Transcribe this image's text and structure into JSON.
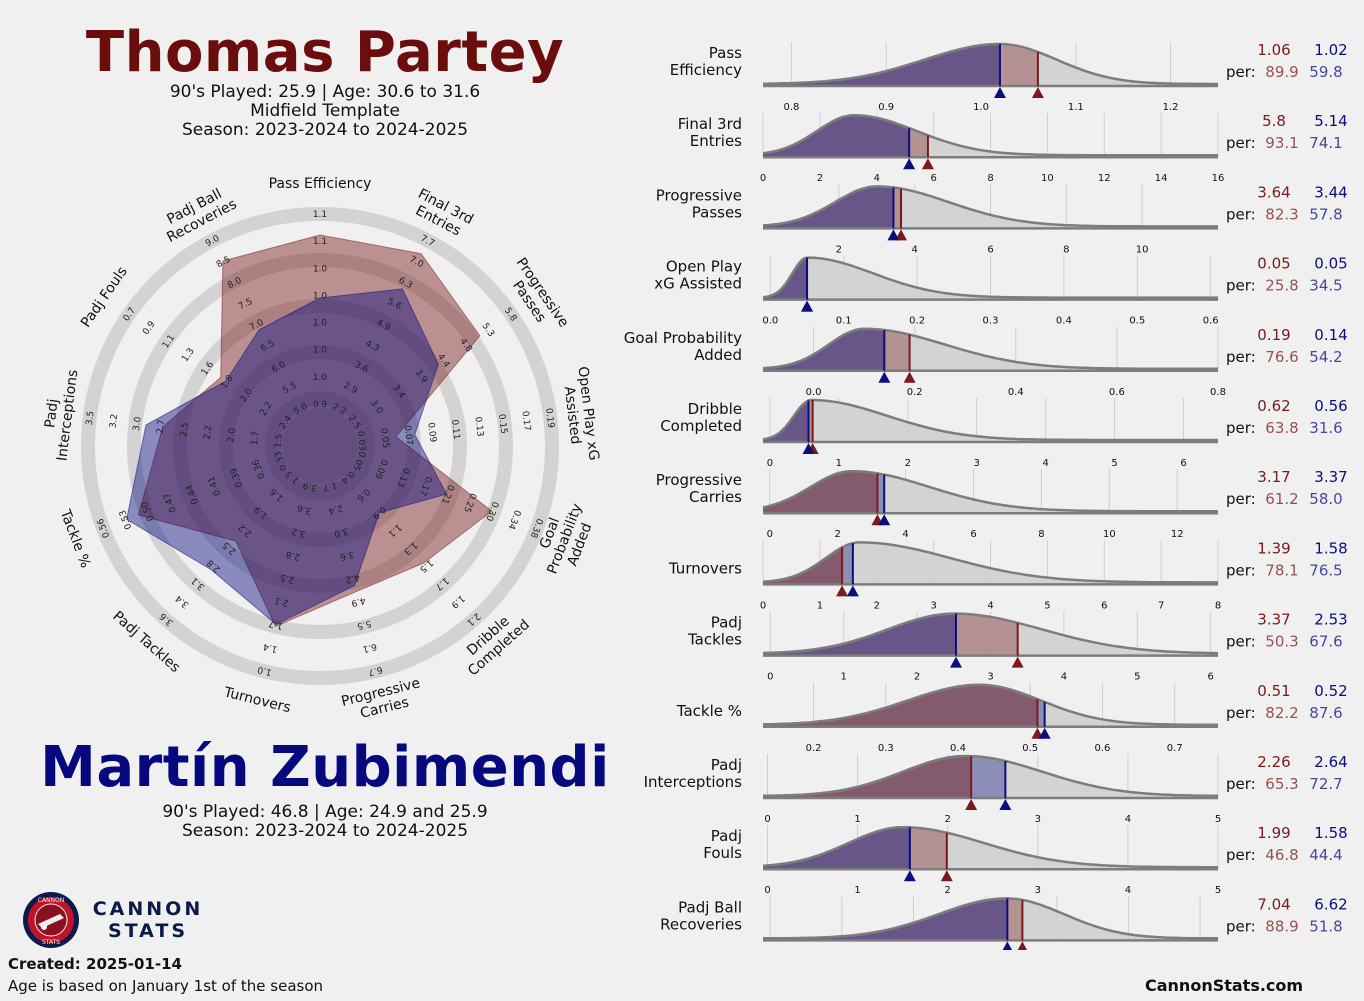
{
  "player1": {
    "name": "Thomas Partey",
    "played": "90's Played: 25.9 | Age: 30.6 to 31.6",
    "template": "Midfield Template",
    "season": "Season: 2023-2024 to 2024-2025",
    "color": "#7a1a1a"
  },
  "player2": {
    "name": "Martín Zubimendi",
    "played": "90's Played: 46.8 | Age: 24.9 and 25.9",
    "season": "Season: 2023-2024 to 2024-2025",
    "color": "#0c0e7e"
  },
  "footer": {
    "created": "Created: 2025-01-14",
    "age_note": "Age is based on January 1st of the season",
    "site": "CannonStats.com",
    "brand_line1": "CANNON",
    "brand_line2": "STATS",
    "logo_top": "CANNON",
    "logo_bottom": "STATS"
  },
  "per_label": "per:",
  "chart_data": [
    {
      "type": "radar",
      "axes": [
        {
          "label": [
            "Pass Efficiency"
          ],
          "ticks": [
            "0.9",
            "1.0",
            "1.0",
            "1.0",
            "1.0",
            "1.0",
            "1.1",
            "1.1"
          ],
          "p1": 0.9,
          "p2": 0.6
        },
        {
          "label": [
            "Final 3rd",
            "Entries"
          ],
          "ticks": [
            "2.2",
            "2.9",
            "3.6",
            "4.3",
            "4.9",
            "5.6",
            "6.3",
            "7.0",
            "7.7"
          ],
          "p1": 0.93,
          "p2": 0.74
        },
        {
          "label": [
            "Progressive",
            "Passes"
          ],
          "ticks": [
            "2.5",
            "3.0",
            "3.4",
            "3.9",
            "4.4",
            "4.8",
            "5.3",
            "5.8"
          ],
          "p1": 0.82,
          "p2": 0.58
        },
        {
          "label": [
            "Open Play xG",
            "Assisted"
          ],
          "ticks": [
            "0.03",
            "0.05",
            "0.07",
            "0.09",
            "0.11",
            "0.13",
            "0.15",
            "0.17",
            "0.19"
          ],
          "p1": 0.26,
          "p2": 0.35
        },
        {
          "label": [
            "Goal",
            "Probability",
            "Added"
          ],
          "ticks": [
            "0.05",
            "0.09",
            "0.13",
            "0.17",
            "0.21",
            "0.25",
            "0.30",
            "0.34",
            "0.38"
          ],
          "p1": 0.77,
          "p2": 0.54
        },
        {
          "label": [
            "Dribble",
            "Completed"
          ],
          "ticks": [
            "0.4",
            "0.6",
            "0.9",
            "1.1",
            "1.3",
            "1.5",
            "1.7",
            "1.9",
            "2.1"
          ],
          "p1": 0.64,
          "p2": 0.32
        },
        {
          "label": [
            "Progressive",
            "Carries"
          ],
          "ticks": [
            "1.7",
            "2.4",
            "3.0",
            "3.6",
            "4.2",
            "4.9",
            "5.5",
            "6.1",
            "6.7"
          ],
          "p1": 0.61,
          "p2": 0.58
        },
        {
          "label": [
            "Turnovers"
          ],
          "ticks": [
            "3.9",
            "3.6",
            "3.2",
            "2.8",
            "2.5",
            "2.1",
            "1.7",
            "1.4",
            "1.0"
          ],
          "p1": 0.78,
          "p2": 0.77
        },
        {
          "label": [
            "Padj Tackles"
          ],
          "ticks": [
            "1.3",
            "1.6",
            "1.9",
            "2.2",
            "2.5",
            "2.8",
            "3.1",
            "3.4",
            "3.6"
          ],
          "p1": 0.5,
          "p2": 0.68
        },
        {
          "label": [
            "Tackle %"
          ],
          "ticks": [
            "0.33",
            "0.36",
            "0.39",
            "0.41",
            "0.44",
            "0.47",
            "0.50",
            "0.53",
            "0.56"
          ],
          "p1": 0.82,
          "p2": 0.88
        },
        {
          "label": [
            "Padj",
            "Interceptions"
          ],
          "ticks": [
            "1.5",
            "1.7",
            "2.0",
            "2.2",
            "2.5",
            "2.7",
            "3.0",
            "3.2",
            "3.5"
          ],
          "p1": 0.65,
          "p2": 0.73
        },
        {
          "label": [
            "Padj Fouls"
          ],
          "ticks": [
            "2.4",
            "2.2",
            "2.0",
            "1.8",
            "1.6",
            "1.3",
            "1.1",
            "0.9",
            "0.7"
          ],
          "p1": 0.47,
          "p2": 0.44
        },
        {
          "label": [
            "Padj Ball",
            "Recoveries"
          ],
          "ticks": [
            "5.0",
            "5.5",
            "6.0",
            "6.5",
            "7.0",
            "7.5",
            "8.0",
            "8.5",
            "9.0"
          ],
          "p1": 0.89,
          "p2": 0.52
        }
      ]
    },
    {
      "type": "area",
      "rows": [
        {
          "label": [
            "Pass",
            "Efficiency"
          ],
          "xmin": 0.77,
          "xmax": 1.25,
          "ticks": [
            "0.8",
            "0.9",
            "1.0",
            "1.1",
            "1.2"
          ],
          "tickvals": [
            0.8,
            0.9,
            1.0,
            1.1,
            1.2
          ],
          "peak": 1.02,
          "sl": 0.08,
          "sr": 0.06,
          "p1_value": "1.06",
          "p2_value": "1.02",
          "p1_pct": "89.9",
          "p2_pct": "59.8",
          "v1": 1.06,
          "v2": 1.02
        },
        {
          "label": [
            "Final 3rd",
            "Entries"
          ],
          "xmin": 0,
          "xmax": 16,
          "ticks": [
            "0",
            "2",
            "4",
            "6",
            "8",
            "10",
            "12",
            "14",
            "16"
          ],
          "tickvals": [
            0,
            2,
            4,
            6,
            8,
            10,
            12,
            14,
            16
          ],
          "peak": 3.2,
          "sl": 1.3,
          "sr": 2.2,
          "p1_value": "5.8",
          "p2_value": "5.14",
          "p1_pct": "93.1",
          "p2_pct": "74.1",
          "v1": 5.8,
          "v2": 5.14
        },
        {
          "label": [
            "Progressive",
            "Passes"
          ],
          "xmin": 0,
          "xmax": 12,
          "ticks": [
            "2",
            "4",
            "6",
            "8",
            "10"
          ],
          "tickvals": [
            2,
            4,
            6,
            8,
            10
          ],
          "peak": 3.0,
          "sl": 1.1,
          "sr": 1.9,
          "p1_value": "3.64",
          "p2_value": "3.44",
          "p1_pct": "82.3",
          "p2_pct": "57.8",
          "v1": 3.64,
          "v2": 3.44
        },
        {
          "label": [
            "Open Play",
            "xG Assisted"
          ],
          "xmin": -0.01,
          "xmax": 0.61,
          "ticks": [
            "0.0",
            "0.1",
            "0.2",
            "0.3",
            "0.4",
            "0.5",
            "0.6"
          ],
          "tickvals": [
            0,
            0.1,
            0.2,
            0.3,
            0.4,
            0.5,
            0.6
          ],
          "peak": 0.05,
          "sl": 0.02,
          "sr": 0.09,
          "p1_value": "0.05",
          "p2_value": "0.05",
          "p1_pct": "25.8",
          "p2_pct": "34.5",
          "v1": 0.05,
          "v2": 0.05
        },
        {
          "label": [
            "Goal Probability",
            "Added"
          ],
          "xmin": -0.1,
          "xmax": 0.8,
          "ticks": [
            "0.0",
            "0.2",
            "0.4",
            "0.6",
            "0.8"
          ],
          "tickvals": [
            0,
            0.2,
            0.4,
            0.6,
            0.8
          ],
          "peak": 0.1,
          "sl": 0.07,
          "sr": 0.16,
          "p1_value": "0.19",
          "p2_value": "0.14",
          "p1_pct": "76.6",
          "p2_pct": "54.2",
          "v1": 0.19,
          "v2": 0.14
        },
        {
          "label": [
            "Dribble",
            "Completed"
          ],
          "xmin": -0.1,
          "xmax": 6.5,
          "ticks": [
            "0",
            "1",
            "2",
            "3",
            "4",
            "5",
            "6"
          ],
          "tickvals": [
            0,
            1,
            2,
            3,
            4,
            5,
            6
          ],
          "peak": 0.6,
          "sl": 0.25,
          "sr": 1.1,
          "p1_value": "0.62",
          "p2_value": "0.56",
          "p1_pct": "63.8",
          "p2_pct": "31.6",
          "v1": 0.62,
          "v2": 0.56
        },
        {
          "label": [
            "Progressive",
            "Carries"
          ],
          "xmin": -0.2,
          "xmax": 13.2,
          "ticks": [
            "0",
            "2",
            "4",
            "6",
            "8",
            "10",
            "12"
          ],
          "tickvals": [
            0,
            2,
            4,
            6,
            8,
            10,
            12
          ],
          "peak": 2.4,
          "sl": 1.2,
          "sr": 2.3,
          "p1_value": "3.17",
          "p2_value": "3.37",
          "p1_pct": "61.2",
          "p2_pct": "58.0",
          "v1": 3.17,
          "v2": 3.37
        },
        {
          "label": [
            "Turnovers"
          ],
          "xmin": 0,
          "xmax": 8,
          "ticks": [
            "0",
            "1",
            "2",
            "3",
            "4",
            "5",
            "6",
            "7",
            "8"
          ],
          "tickvals": [
            0,
            1,
            2,
            3,
            4,
            5,
            6,
            7,
            8
          ],
          "peak": 1.7,
          "sl": 0.6,
          "sr": 1.6,
          "p1_value": "1.39",
          "p2_value": "1.58",
          "p1_pct": "78.1",
          "p2_pct": "76.5",
          "v1": 1.39,
          "v2": 1.58
        },
        {
          "label": [
            "Padj",
            "Tackles"
          ],
          "xmin": -0.1,
          "xmax": 6.1,
          "ticks": [
            "0",
            "1",
            "2",
            "3",
            "4",
            "5",
            "6"
          ],
          "tickvals": [
            0,
            1,
            2,
            3,
            4,
            5,
            6
          ],
          "peak": 2.5,
          "sl": 0.9,
          "sr": 1.2,
          "p1_value": "3.37",
          "p2_value": "2.53",
          "p1_pct": "50.3",
          "p2_pct": "67.6",
          "v1": 3.37,
          "v2": 2.53
        },
        {
          "label": [
            "Tackle %"
          ],
          "xmin": 0.13,
          "xmax": 0.76,
          "ticks": [
            "0.2",
            "0.3",
            "0.4",
            "0.5",
            "0.6",
            "0.7"
          ],
          "tickvals": [
            0.2,
            0.3,
            0.4,
            0.5,
            0.6,
            0.7
          ],
          "peak": 0.43,
          "sl": 0.1,
          "sr": 0.085,
          "p1_value": "0.51",
          "p2_value": "0.52",
          "p1_pct": "82.2",
          "p2_pct": "87.6",
          "v1": 0.51,
          "v2": 0.52
        },
        {
          "label": [
            "Padj",
            "Interceptions"
          ],
          "xmin": -0.05,
          "xmax": 5.0,
          "ticks": [
            "0",
            "1",
            "2",
            "3",
            "4",
            "5"
          ],
          "tickvals": [
            0,
            1,
            2,
            3,
            4,
            5
          ],
          "peak": 2.2,
          "sl": 0.7,
          "sr": 0.85,
          "p1_value": "2.26",
          "p2_value": "2.64",
          "p1_pct": "65.3",
          "p2_pct": "72.7",
          "v1": 2.26,
          "v2": 2.64
        },
        {
          "label": [
            "Padj",
            "Fouls"
          ],
          "xmin": -0.05,
          "xmax": 5.0,
          "ticks": [
            "0",
            "1",
            "2",
            "3",
            "4",
            "5"
          ],
          "tickvals": [
            0,
            1,
            2,
            3,
            4,
            5
          ],
          "peak": 1.5,
          "sl": 0.6,
          "sr": 0.9,
          "p1_value": "1.99",
          "p2_value": "1.58",
          "p1_pct": "46.8",
          "p2_pct": "44.4",
          "v1": 1.99,
          "v2": 1.58
        },
        {
          "label": [
            "Padj Ball",
            "Recoveries"
          ],
          "xmin": -0.2,
          "xmax": 12.5,
          "ticks": [
            "0",
            "2",
            "4",
            "6",
            "8",
            "10",
            "12"
          ],
          "tickvals": [
            0,
            2,
            4,
            6,
            8,
            10,
            12
          ],
          "peak": 6.6,
          "sl": 1.9,
          "sr": 1.6,
          "p1_value": "7.04",
          "p2_value": "6.62",
          "p1_pct": "88.9",
          "p2_pct": "51.8",
          "v1": 7.04,
          "v2": 6.62
        }
      ]
    }
  ]
}
